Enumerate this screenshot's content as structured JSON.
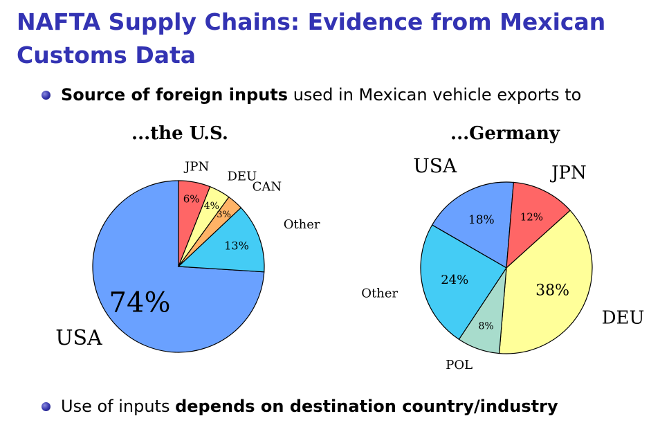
{
  "slide": {
    "title": "NAFTA Supply Chains: Evidence from Mexican Customs Data",
    "bullet1": {
      "bold": "Source of foreign inputs",
      "rest": " used in Mexican vehicle exports to"
    },
    "bullet2": {
      "plain": "Use of inputs ",
      "bold": "depends on destination country/industry"
    }
  },
  "chart_data": [
    {
      "type": "pie",
      "title": "...the U.S.",
      "slices": [
        {
          "name": "USA",
          "value": 74,
          "label": "74%",
          "color": "#6aa1ff"
        },
        {
          "name": "JPN",
          "value": 6,
          "label": "6%",
          "color": "#ff6666"
        },
        {
          "name": "DEU",
          "value": 4,
          "label": "4%",
          "color": "#ffff99"
        },
        {
          "name": "CAN",
          "value": 3,
          "label": "3%",
          "color": "#ffb366"
        },
        {
          "name": "Other",
          "value": 13,
          "label": "13%",
          "color": "#44ccf5"
        }
      ]
    },
    {
      "type": "pie",
      "title": "...Germany",
      "slices": [
        {
          "name": "USA",
          "value": 18,
          "label": "18%",
          "color": "#6aa1ff"
        },
        {
          "name": "JPN",
          "value": 12,
          "label": "12%",
          "color": "#ff6666"
        },
        {
          "name": "DEU",
          "value": 38,
          "label": "38%",
          "color": "#ffff99"
        },
        {
          "name": "POL",
          "value": 8,
          "label": "8%",
          "color": "#a8dccc"
        },
        {
          "name": "Other",
          "value": 24,
          "label": "24%",
          "color": "#44ccf5"
        }
      ]
    }
  ]
}
